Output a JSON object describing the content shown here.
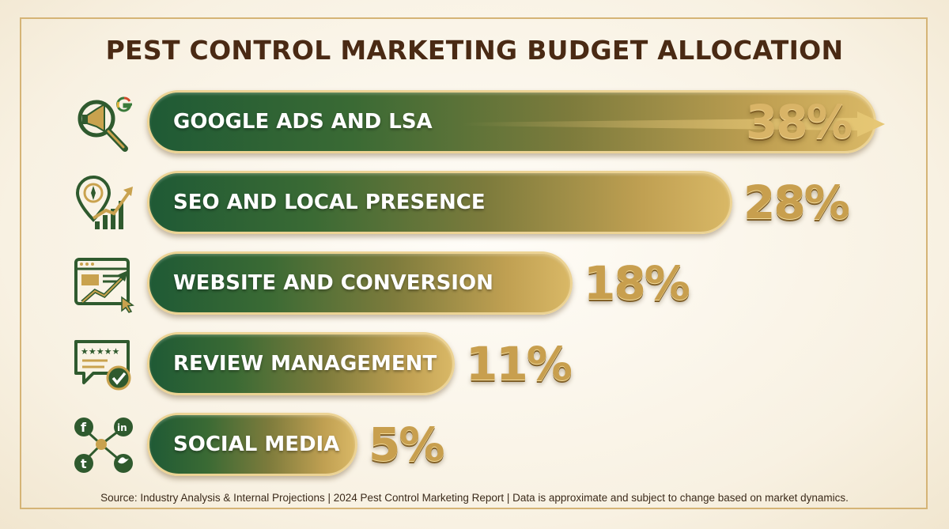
{
  "chart_data": {
    "type": "bar",
    "orientation": "horizontal",
    "title": "PEST CONTROL MARKETING BUDGET ALLOCATION",
    "categories": [
      "GOOGLE ADS AND LSA",
      "SEO AND LOCAL PRESENCE",
      "WEBSITE AND CONVERSION",
      "REVIEW MANAGEMENT",
      "SOCIAL MEDIA"
    ],
    "values": [
      38,
      28,
      18,
      11,
      5
    ],
    "value_labels": [
      "38%",
      "28%",
      "18%",
      "11%",
      "5%"
    ],
    "unit": "%",
    "icons": [
      "megaphone-search-google-icon",
      "location-compass-growth-icon",
      "website-growth-cursor-icon",
      "review-stars-check-icon",
      "social-share-network-icon"
    ],
    "colors": {
      "bar_start": "#1f5a35",
      "bar_end": "#d9b866",
      "border": "#ecd394",
      "value": "#c89f4e",
      "title": "#4a2a14"
    }
  },
  "source": "Source: Industry Analysis & Internal Projections | 2024 Pest Control Marketing Report | Data is approximate and subject to change based on market dynamics."
}
